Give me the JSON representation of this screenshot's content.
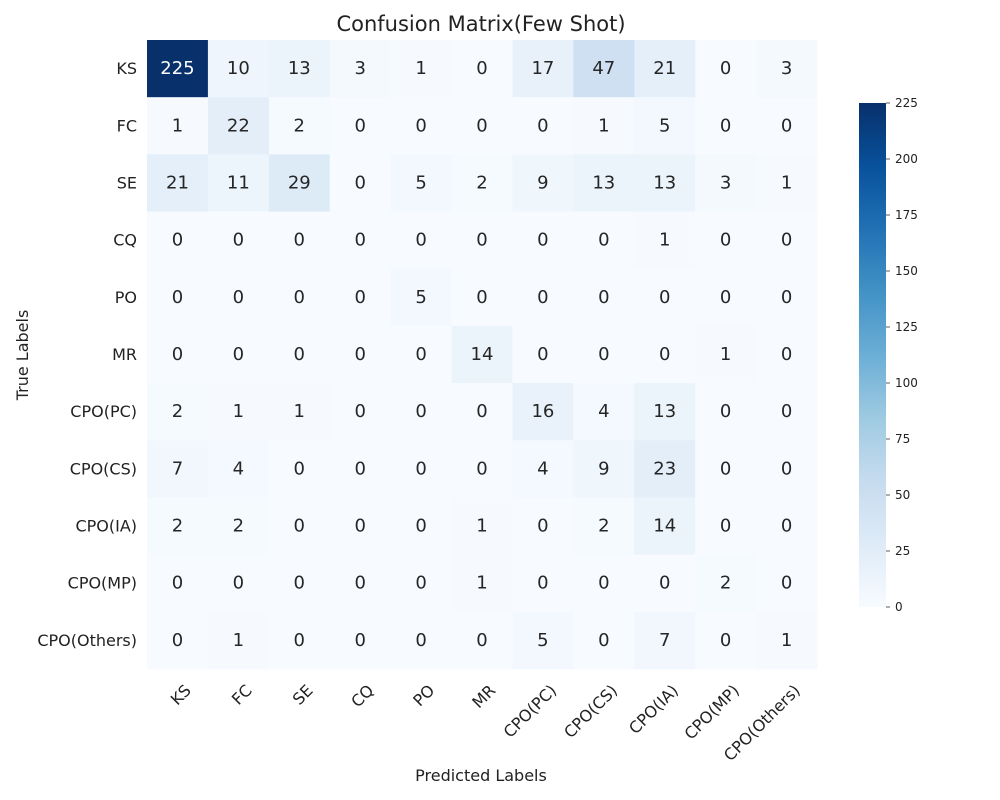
{
  "chart_data": {
    "type": "heatmap",
    "title": "Confusion Matrix(Few Shot)",
    "xlabel": "Predicted Labels",
    "ylabel": "True Labels",
    "x_categories": [
      "KS",
      "FC",
      "SE",
      "CQ",
      "PO",
      "MR",
      "CPO(PC)",
      "CPO(CS)",
      "CPO(IA)",
      "CPO(MP)",
      "CPO(Others)"
    ],
    "y_categories": [
      "KS",
      "FC",
      "SE",
      "CQ",
      "PO",
      "MR",
      "CPO(PC)",
      "CPO(CS)",
      "CPO(IA)",
      "CPO(MP)",
      "CPO(Others)"
    ],
    "values": [
      [
        225,
        10,
        13,
        3,
        1,
        0,
        17,
        47,
        21,
        0,
        3
      ],
      [
        1,
        22,
        2,
        0,
        0,
        0,
        0,
        1,
        5,
        0,
        0
      ],
      [
        21,
        11,
        29,
        0,
        5,
        2,
        9,
        13,
        13,
        3,
        1
      ],
      [
        0,
        0,
        0,
        0,
        0,
        0,
        0,
        0,
        1,
        0,
        0
      ],
      [
        0,
        0,
        0,
        0,
        5,
        0,
        0,
        0,
        0,
        0,
        0
      ],
      [
        0,
        0,
        0,
        0,
        0,
        14,
        0,
        0,
        0,
        1,
        0
      ],
      [
        2,
        1,
        1,
        0,
        0,
        0,
        16,
        4,
        13,
        0,
        0
      ],
      [
        7,
        4,
        0,
        0,
        0,
        0,
        4,
        9,
        23,
        0,
        0
      ],
      [
        2,
        2,
        0,
        0,
        0,
        1,
        0,
        2,
        14,
        0,
        0
      ],
      [
        0,
        0,
        0,
        0,
        0,
        1,
        0,
        0,
        0,
        2,
        0
      ],
      [
        0,
        1,
        0,
        0,
        0,
        0,
        5,
        0,
        7,
        0,
        1
      ]
    ],
    "colorbar": {
      "min": 0,
      "max": 225,
      "ticks": [
        0,
        25,
        50,
        75,
        100,
        125,
        150,
        175,
        200,
        225
      ]
    },
    "colormap": "Blues"
  }
}
